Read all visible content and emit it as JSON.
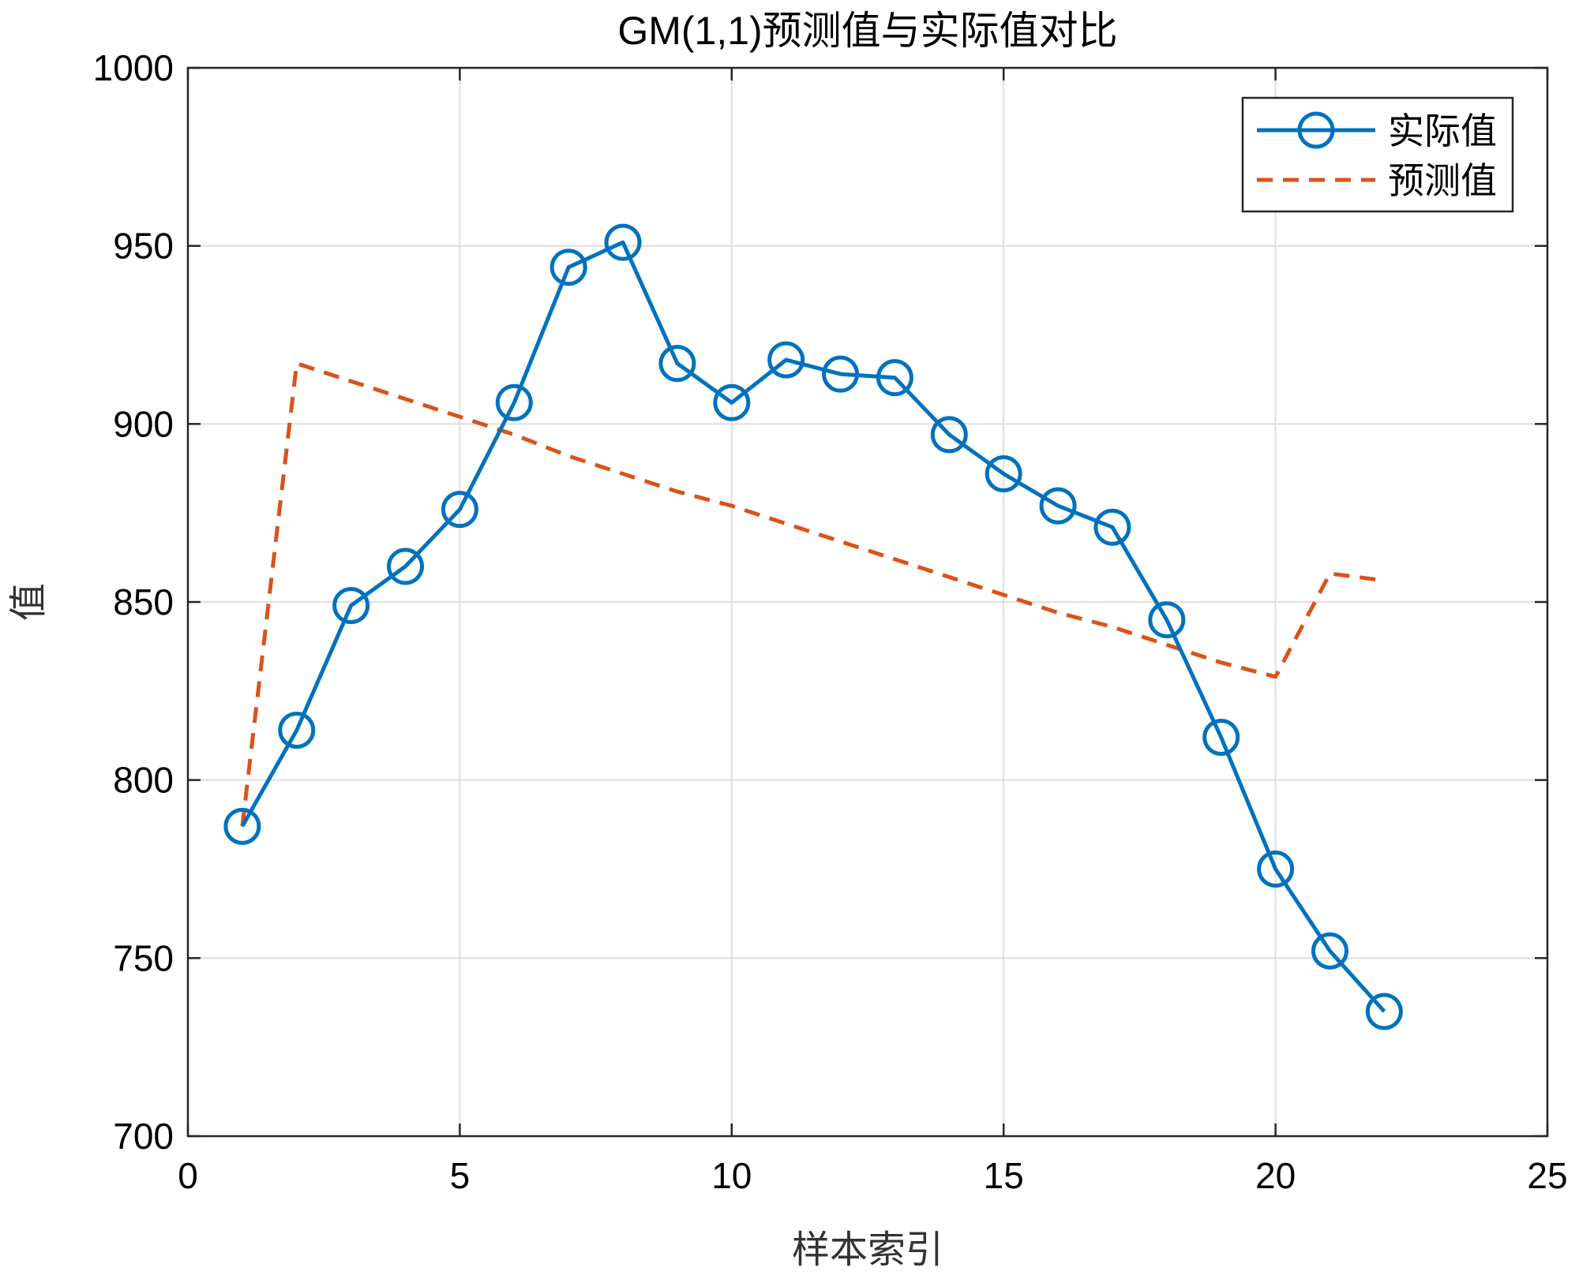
{
  "chart_data": {
    "type": "line",
    "title": "GM(1,1)预测值与实际值对比",
    "xlabel": "样本索引",
    "ylabel": "值",
    "xlim": [
      0,
      25
    ],
    "ylim": [
      700,
      1000
    ],
    "xticks": [
      0,
      5,
      10,
      15,
      20,
      25
    ],
    "yticks": [
      700,
      750,
      800,
      850,
      900,
      950,
      1000
    ],
    "grid": true,
    "legend_position": "top-right",
    "series": [
      {
        "name": "实际值",
        "style": "solid-circle-markers",
        "color": "#0072BD",
        "x": [
          1,
          2,
          3,
          4,
          5,
          6,
          7,
          8,
          9,
          10,
          11,
          12,
          13,
          14,
          15,
          16,
          17,
          18,
          19,
          20,
          21,
          22
        ],
        "y": [
          787,
          814,
          849,
          860,
          876,
          906,
          944,
          951,
          917,
          906,
          918,
          914,
          913,
          897,
          886,
          877,
          871,
          845,
          812,
          775,
          752,
          735
        ]
      },
      {
        "name": "预测值",
        "style": "dashed",
        "color": "#D95319",
        "x": [
          1,
          2,
          3,
          4,
          5,
          6,
          7,
          8,
          9,
          10,
          11,
          12,
          13,
          14,
          15,
          16,
          17,
          18,
          19,
          20,
          21,
          22
        ],
        "y": [
          787,
          917,
          912,
          907,
          902,
          897,
          891,
          886,
          881,
          877,
          872,
          867,
          862,
          857,
          852,
          847,
          843,
          838,
          833,
          829,
          858,
          856
        ]
      }
    ]
  }
}
